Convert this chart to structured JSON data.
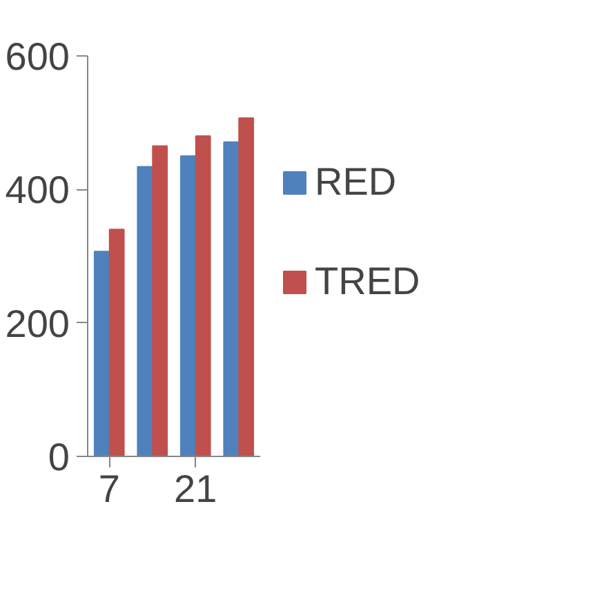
{
  "chart_data": {
    "type": "bar",
    "categories": [
      "7",
      null,
      "21",
      null
    ],
    "series": [
      {
        "name": "RED",
        "color": "#4f81bd",
        "values": [
          307,
          434,
          450,
          471
        ]
      },
      {
        "name": "TRED",
        "color": "#c0504d",
        "values": [
          340,
          465,
          480,
          507
        ]
      }
    ],
    "ylim": [
      0,
      600
    ],
    "yticks": [
      0,
      200,
      400,
      600
    ],
    "grid": false,
    "legend": "right"
  }
}
